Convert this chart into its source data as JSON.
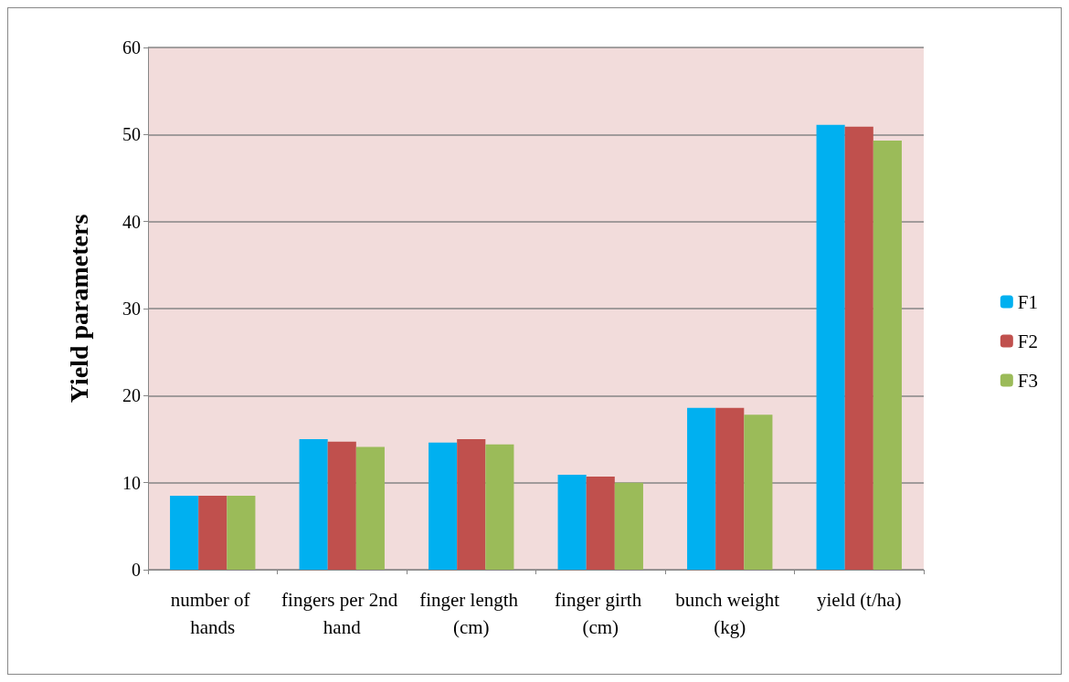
{
  "chart_data": {
    "type": "bar",
    "ylabel": "Yield parameters",
    "categories": [
      "number of hands",
      "fingers per 2nd hand",
      "finger length (cm)",
      "finger girth (cm)",
      "bunch weight (kg)",
      "yield (t/ha)"
    ],
    "series": [
      {
        "name": "F1",
        "color": "#00b0f0",
        "values": [
          8.5,
          15.0,
          14.6,
          10.9,
          18.6,
          51.1
        ]
      },
      {
        "name": "F2",
        "color": "#c0504d",
        "values": [
          8.5,
          14.7,
          15.0,
          10.7,
          18.6,
          50.9
        ]
      },
      {
        "name": "F3",
        "color": "#9bbb59",
        "values": [
          8.5,
          14.1,
          14.4,
          10.0,
          17.8,
          49.3
        ]
      }
    ],
    "ylim": [
      0,
      60
    ],
    "yticks": [
      0,
      10,
      20,
      30,
      40,
      50,
      60
    ],
    "grid": "y",
    "legend": "right"
  }
}
